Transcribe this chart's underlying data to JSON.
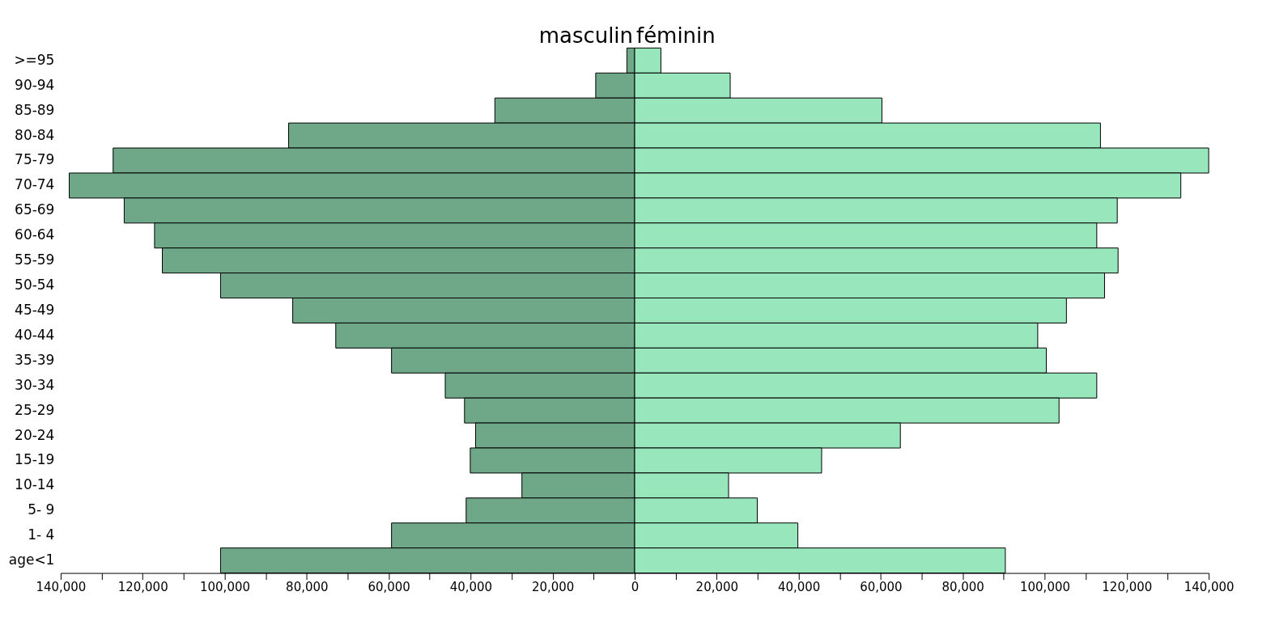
{
  "chart_data": {
    "type": "bar",
    "orientation": "horizontal",
    "stacked": true,
    "legend": false,
    "grid": false,
    "categories": [
      ">=95",
      "90-94",
      "85-89",
      "80-84",
      "75-79",
      "70-74",
      "65-69",
      "60-64",
      "55-59",
      "50-54",
      "45-49",
      "40-44",
      "35-39",
      "30-34",
      "25-29",
      "20-24",
      "15-19",
      "10-14",
      "5- 9",
      "1- 4",
      "age<1"
    ],
    "series": [
      {
        "name": "masculin",
        "color": "#6fa888",
        "values": [
          -1900,
          -9500,
          -34100,
          -84400,
          -127200,
          -137900,
          -124500,
          -117100,
          -115200,
          -101000,
          -83400,
          -72900,
          -59300,
          -46200,
          -41500,
          -38800,
          -40100,
          -27500,
          -41100,
          -59300,
          -101000
        ]
      },
      {
        "name": "féminin",
        "color": "#98e6bc",
        "values": [
          6400,
          23300,
          60300,
          113600,
          140000,
          133200,
          117700,
          112700,
          117900,
          114600,
          105300,
          98300,
          100400,
          112700,
          103500,
          64800,
          45600,
          22900,
          29900,
          39800,
          90400
        ]
      }
    ],
    "xlim": [
      -140000,
      140000
    ],
    "xticks": [
      {
        "value": -140000,
        "label": "140,000"
      },
      {
        "value": -130000,
        "label": null
      },
      {
        "value": -120000,
        "label": "120,000"
      },
      {
        "value": -110000,
        "label": null
      },
      {
        "value": -100000,
        "label": "100,000"
      },
      {
        "value": -90000,
        "label": null
      },
      {
        "value": -80000,
        "label": "80,000"
      },
      {
        "value": -70000,
        "label": null
      },
      {
        "value": -60000,
        "label": "60,000"
      },
      {
        "value": -50000,
        "label": null
      },
      {
        "value": -40000,
        "label": "40,000"
      },
      {
        "value": -30000,
        "label": null
      },
      {
        "value": -20000,
        "label": "20,000"
      },
      {
        "value": -10000,
        "label": null
      },
      0,
      {
        "value": 10000,
        "label": null
      },
      {
        "value": 20000,
        "label": "20,000"
      },
      {
        "value": 30000,
        "label": null
      },
      {
        "value": 40000,
        "label": "40,000"
      },
      {
        "value": 50000,
        "label": null
      },
      {
        "value": 60000,
        "label": "60,000"
      },
      {
        "value": 70000,
        "label": null
      },
      {
        "value": 80000,
        "label": "80,000"
      },
      {
        "value": 90000,
        "label": null
      },
      {
        "value": 100000,
        "label": "100,000"
      },
      {
        "value": 110000,
        "label": null
      },
      {
        "value": 120000,
        "label": "120,000"
      },
      {
        "value": 130000,
        "label": null
      },
      {
        "value": 140000,
        "label": "140,000"
      }
    ]
  }
}
